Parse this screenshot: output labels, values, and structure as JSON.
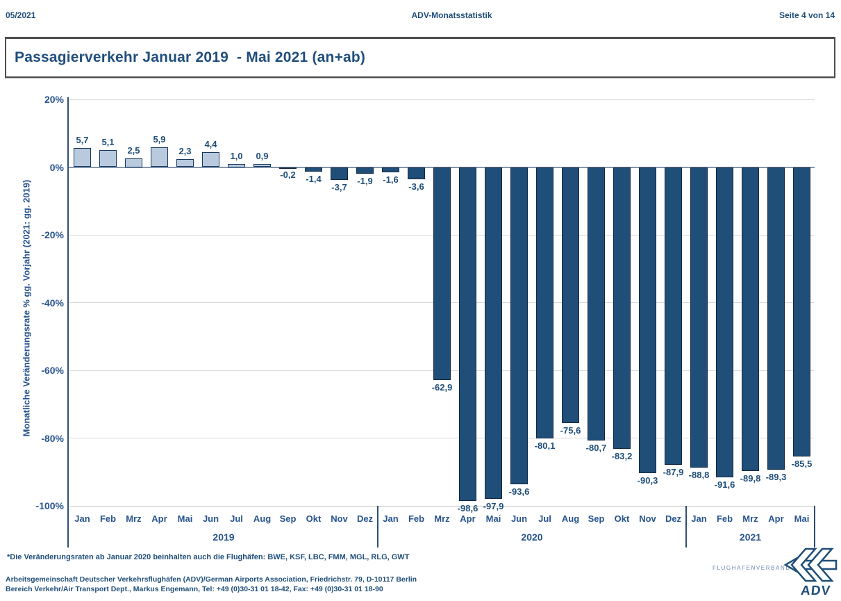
{
  "header": {
    "left": "05/2021",
    "center": "ADV-Monatsstatistik",
    "right": "Seite 4 von 14"
  },
  "title": "Passagierverkehr Januar 2019  - Mai 2021 (an+ab)",
  "chart_data": {
    "type": "bar",
    "title": "Passagierverkehr Januar 2019 - Mai 2021 (an+ab)",
    "ylabel": "Monatliche Veränderungsrate % gg. Vorjahr (2021: gg. 2019)",
    "xlabel": "",
    "ylim": [
      -100,
      20
    ],
    "grid": true,
    "legend": false,
    "ytick_values": [
      20,
      0,
      -20,
      -40,
      -60,
      -80,
      -100
    ],
    "ytick_labels": [
      "20%",
      "0%",
      "-20%",
      "-40%",
      "-60%",
      "-80%",
      "-100%"
    ],
    "groups": [
      {
        "label": "2019",
        "count": 12
      },
      {
        "label": "2020",
        "count": 12
      },
      {
        "label": "2021",
        "count": 5
      }
    ],
    "categories": [
      "Jan",
      "Feb",
      "Mrz",
      "Apr",
      "Mai",
      "Jun",
      "Jul",
      "Aug",
      "Sep",
      "Okt",
      "Nov",
      "Dez",
      "Jan",
      "Feb",
      "Mrz",
      "Apr",
      "Mai",
      "Jun",
      "Jul",
      "Aug",
      "Sep",
      "Okt",
      "Nov",
      "Dez",
      "Jan",
      "Feb",
      "Mrz",
      "Apr",
      "Mai"
    ],
    "values": [
      5.7,
      5.1,
      2.5,
      5.9,
      2.3,
      4.4,
      1.0,
      0.9,
      -0.2,
      -1.4,
      -3.7,
      -1.9,
      -1.6,
      -3.6,
      -62.9,
      -98.6,
      -97.9,
      -93.6,
      -80.1,
      -75.6,
      -80.7,
      -83.2,
      -90.3,
      -87.9,
      -88.8,
      -91.6,
      -89.8,
      -89.3,
      -85.5
    ],
    "value_labels": [
      "5,7",
      "5,1",
      "2,5",
      "5,9",
      "2,3",
      "4,4",
      "1,0",
      "0,9",
      "-0,2",
      "-1,4",
      "-3,7",
      "-1,9",
      "-1,6",
      "-3,6",
      "-62,9",
      "-98,6",
      "-97,9",
      "-93,6",
      "-80,1",
      "-75,6",
      "-80,7",
      "-83,2",
      "-90,3",
      "-87,9",
      "-88,8",
      "-91,6",
      "-89,8",
      "-89,3",
      "-85,5"
    ],
    "colors": {
      "positive_fill": "#B9CADE",
      "positive_border": "#17375D",
      "negative_fill": "#1F4E79",
      "negative_border": "#13283F",
      "zero_line": "#8496B0",
      "gridline": "#D9D9D9",
      "axis_line": "#2F4D75",
      "label_text": "#1F4E79"
    }
  },
  "footnote": "*Die Veränderungsraten ab Januar 2020 beinhalten auch die Flughäfen: BWE, KSF, LBC, FMM, MGL, RLG, GWT",
  "footer": {
    "line1": "Arbeitsgemeinschaft Deutscher Verkehrsflughäfen (ADV)/German Airports Association, Friedrichstr. 79, D-10117 Berlin",
    "line2": "Bereich Verkehr/Air Transport Dept., Markus Engemann, Tel: +49 (0)30-31 01 18-42, Fax: +49 (0)30-31 01 18-90"
  },
  "logo": {
    "top_text": "FLUGHAFENVERBAND",
    "brand": "ADV"
  }
}
